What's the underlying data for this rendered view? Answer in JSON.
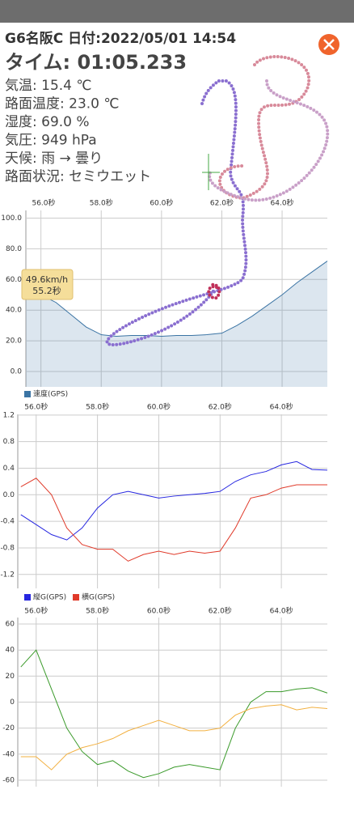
{
  "header": {
    "title": "G6名阪C 日付:2022/05/01 14:54",
    "time": "タイム: 01:05.233",
    "conditions": [
      "気温: 15.4 ℃",
      "路面温度: 23.0 ℃",
      "湿度: 69.0 %",
      "気圧: 949 hPa",
      "天候: 雨 → 曇り",
      "路面状況: セミウエット"
    ]
  },
  "tooltip": {
    "speed": "49.6km/h",
    "time": "55.2秒"
  },
  "chart_data": [
    {
      "type": "area",
      "x": [
        55.5,
        56,
        56.5,
        57,
        57.5,
        58,
        58.5,
        59,
        59.5,
        60,
        60.5,
        61,
        61.5,
        62,
        62.5,
        63,
        63.5,
        64,
        64.5,
        65,
        65.5
      ],
      "series": [
        {
          "name": "速度(GPS)",
          "color": "#3b74a4",
          "values": [
            52,
            50,
            45,
            37,
            29,
            24,
            23,
            23.5,
            23.5,
            23,
            23.5,
            23.5,
            24,
            25,
            30,
            36,
            43,
            50,
            58,
            65,
            72
          ]
        }
      ],
      "xlim": [
        55.5,
        65.5
      ],
      "ylim": [
        -10,
        105
      ],
      "xticks": [
        {
          "value": 56,
          "label": "56.0秒"
        },
        {
          "value": 58,
          "label": "58.0秒"
        },
        {
          "value": 60,
          "label": "60.0秒"
        },
        {
          "value": 62,
          "label": "62.0秒"
        },
        {
          "value": 64,
          "label": "64.0秒"
        }
      ],
      "yticks": [
        {
          "value": 0,
          "label": "0.0"
        },
        {
          "value": 20,
          "label": "20.0"
        },
        {
          "value": 40,
          "label": "40.0"
        },
        {
          "value": 60,
          "label": "60.0"
        },
        {
          "value": 80,
          "label": "80.0"
        },
        {
          "value": 100,
          "label": "100.0"
        }
      ],
      "grid": true
    },
    {
      "type": "line",
      "x": [
        55.5,
        56,
        56.5,
        57,
        57.5,
        58,
        58.5,
        59,
        59.5,
        60,
        60.5,
        61,
        61.5,
        62,
        62.5,
        63,
        63.5,
        64,
        64.5,
        65,
        65.5
      ],
      "series": [
        {
          "name": "縦G(GPS)",
          "color": "#2626e0",
          "values": [
            -0.3,
            -0.45,
            -0.6,
            -0.68,
            -0.5,
            -0.2,
            0,
            0.05,
            0,
            -0.05,
            -0.02,
            0,
            0.02,
            0.05,
            0.2,
            0.3,
            0.35,
            0.45,
            0.5,
            0.38,
            0.37
          ]
        },
        {
          "name": "横G(GPS)",
          "color": "#e03a2a",
          "values": [
            0.12,
            0.25,
            0,
            -0.5,
            -0.75,
            -0.82,
            -0.82,
            -1,
            -0.9,
            -0.85,
            -0.9,
            -0.85,
            -0.88,
            -0.85,
            -0.5,
            -0.05,
            0,
            0.1,
            0.15,
            0.15,
            0.15
          ]
        }
      ],
      "xlim": [
        55.4,
        65.5
      ],
      "ylim": [
        -1.41,
        1.21
      ],
      "xticks": [
        {
          "value": 56,
          "label": "56.0秒"
        },
        {
          "value": 58,
          "label": "58.0秒"
        },
        {
          "value": 60,
          "label": "60.0秒"
        },
        {
          "value": 62,
          "label": "62.0秒"
        },
        {
          "value": 64,
          "label": "64.0秒"
        }
      ],
      "yticks": [
        -1.2,
        -0.8,
        -0.4,
        {
          "value": 0,
          "label": "0.0"
        },
        0.4,
        0.8,
        1.2
      ],
      "grid": true
    },
    {
      "type": "line",
      "x": [
        55.5,
        56,
        56.5,
        57,
        57.5,
        58,
        58.5,
        59,
        59.5,
        60,
        60.5,
        61,
        61.5,
        62,
        62.5,
        63,
        63.5,
        64,
        64.5,
        65,
        65.5
      ],
      "series": [
        {
          "color": "#3a9a2a",
          "values": [
            27,
            40,
            10,
            -20,
            -38,
            -48,
            -45,
            -53,
            -58,
            -55,
            -50,
            -48,
            -50,
            -52,
            -20,
            0,
            8,
            8,
            10,
            11,
            7
          ]
        },
        {
          "color": "#f2b040",
          "values": [
            -42,
            -42,
            -52,
            -40,
            -35,
            -32,
            -28,
            -22,
            -18,
            -14,
            -18,
            -22,
            -22,
            -20,
            -10,
            -5,
            -3,
            -2,
            -6,
            -4,
            -5
          ]
        }
      ],
      "xlim": [
        55.4,
        65.5
      ],
      "ylim": [
        -65,
        65
      ],
      "xticks": [
        {
          "value": 56,
          "label": "56.0秒"
        },
        {
          "value": 58,
          "label": "58.0秒"
        },
        {
          "value": 60,
          "label": "60.0秒"
        },
        {
          "value": 62,
          "label": "62.0秒"
        },
        {
          "value": 64,
          "label": "64.0秒"
        }
      ],
      "yticks": [
        -60,
        -40,
        -20,
        0,
        20,
        40,
        60
      ],
      "grid": true
    }
  ]
}
